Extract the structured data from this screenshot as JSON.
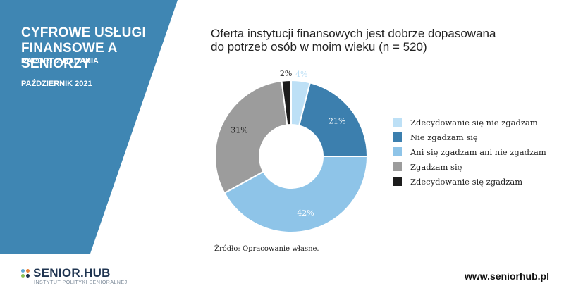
{
  "report": {
    "title_line1": "CYFROWE USŁUGI",
    "title_line2": "FINANSOWE A SENIORZY",
    "subtitle": "RAPORT Z BADANIA",
    "date": "PAŹDZIERNIK 2021"
  },
  "colors": {
    "panel_blue": "#3f86b3",
    "slice_very_light": "#bde0f6",
    "slice_dark_blue": "#3c7fae",
    "slice_light_blue": "#8ec4e8",
    "slice_gray": "#9c9c9c",
    "slice_black": "#1c1c1c"
  },
  "chart_data": {
    "type": "pie",
    "donut": true,
    "title_line1": "Oferta instytucji finansowych jest dobrze dopasowana",
    "title_line2": "do potrzeb osób w moim wieku (n = 520)",
    "slices": [
      {
        "label": "Zdecydowanie się nie zgadzam",
        "value": 4,
        "value_label": "4%",
        "color": "#bde0f6"
      },
      {
        "label": "Nie zgadzam się",
        "value": 21,
        "value_label": "21%",
        "color": "#3c7fae"
      },
      {
        "label": "Ani się zgadzam ani nie zgadzam",
        "value": 42,
        "value_label": "42%",
        "color": "#8ec4e8"
      },
      {
        "label": "Zgadzam się",
        "value": 31,
        "value_label": "31%",
        "color": "#9c9c9c"
      },
      {
        "label": "Zdecydowanie się zgadzam",
        "value": 2,
        "value_label": "2%",
        "color": "#1c1c1c"
      }
    ],
    "legend_position": "right"
  },
  "source_text": "Źródło: Opracowanie własne.",
  "footer": {
    "logo_text": "SENIOR.HUB",
    "logo_tagline": "INSTYTUT POLITYKI SENIORALNEJ",
    "website": "www.seniorhub.pl"
  }
}
